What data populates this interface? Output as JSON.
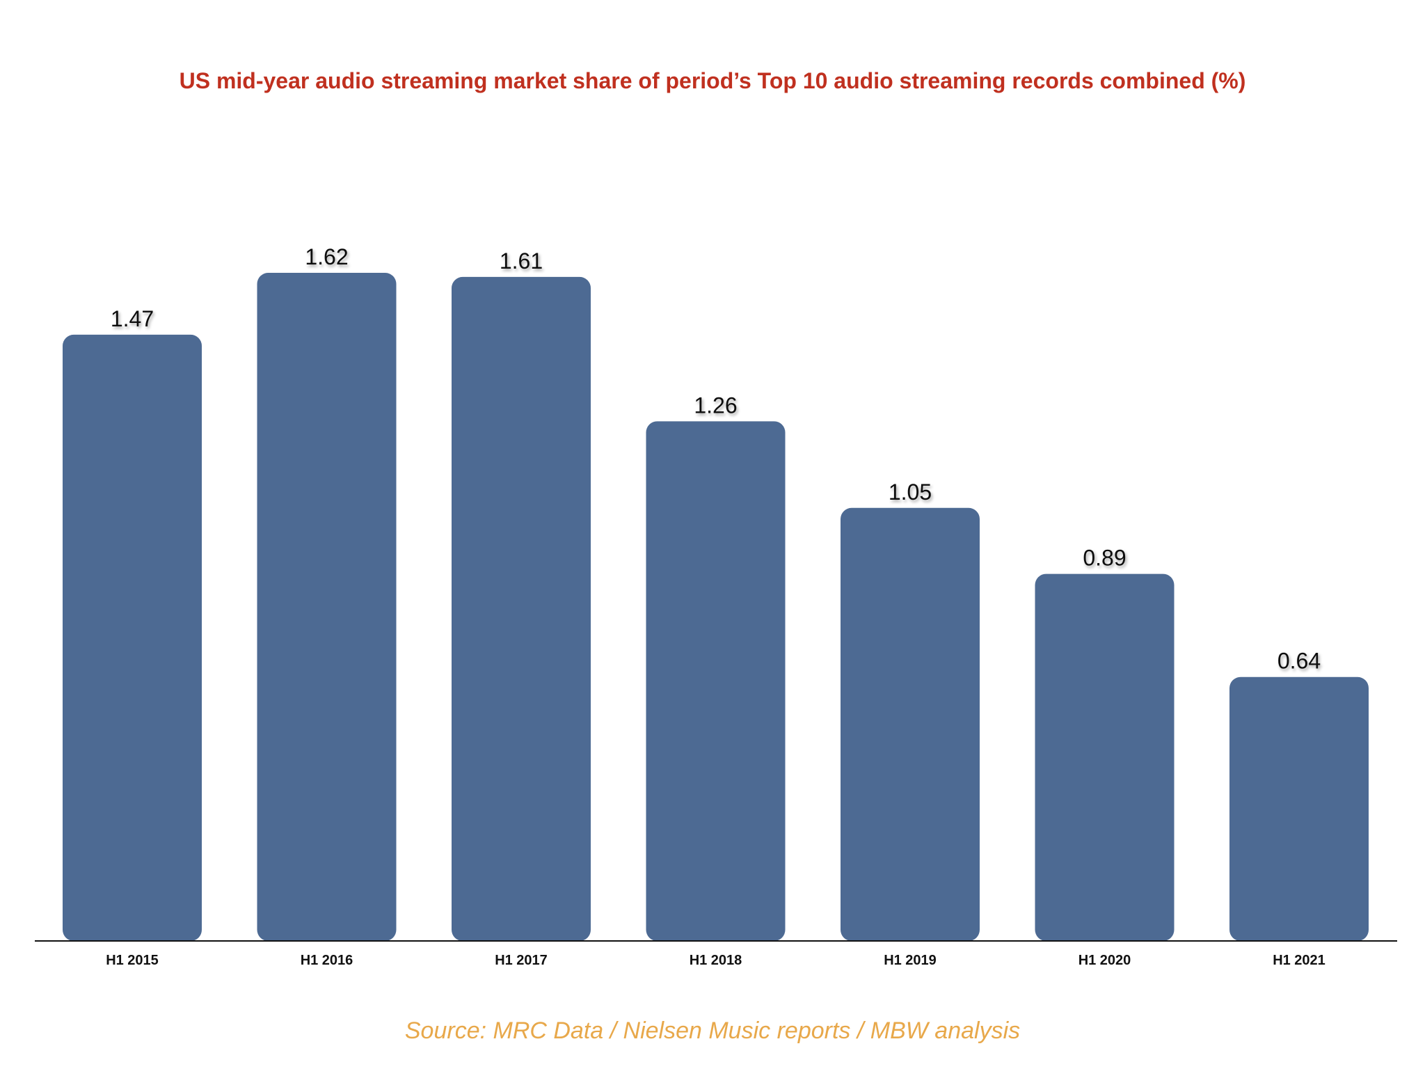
{
  "chart_data": {
    "type": "bar",
    "title": "US mid-year audio streaming market share of period’s Top 10 audio streaming records combined (%)",
    "categories": [
      "H1 2015",
      "H1 2016",
      "H1 2017",
      "H1 2018",
      "H1 2019",
      "H1 2020",
      "H1 2021"
    ],
    "values": [
      1.47,
      1.62,
      1.61,
      1.26,
      1.05,
      0.89,
      0.64
    ],
    "data_labels": [
      "1.47",
      "1.62",
      "1.61",
      "1.26",
      "1.05",
      "0.89",
      "0.64"
    ],
    "xlabel": "",
    "ylabel": "",
    "ylim": [
      0,
      1.62
    ],
    "grid": false,
    "legend": "none",
    "bar_color": "#4d6a93",
    "title_color": "#c0301f",
    "source_color": "#e8a84a"
  },
  "source": "Source: MRC Data / Nielsen Music reports / MBW analysis"
}
